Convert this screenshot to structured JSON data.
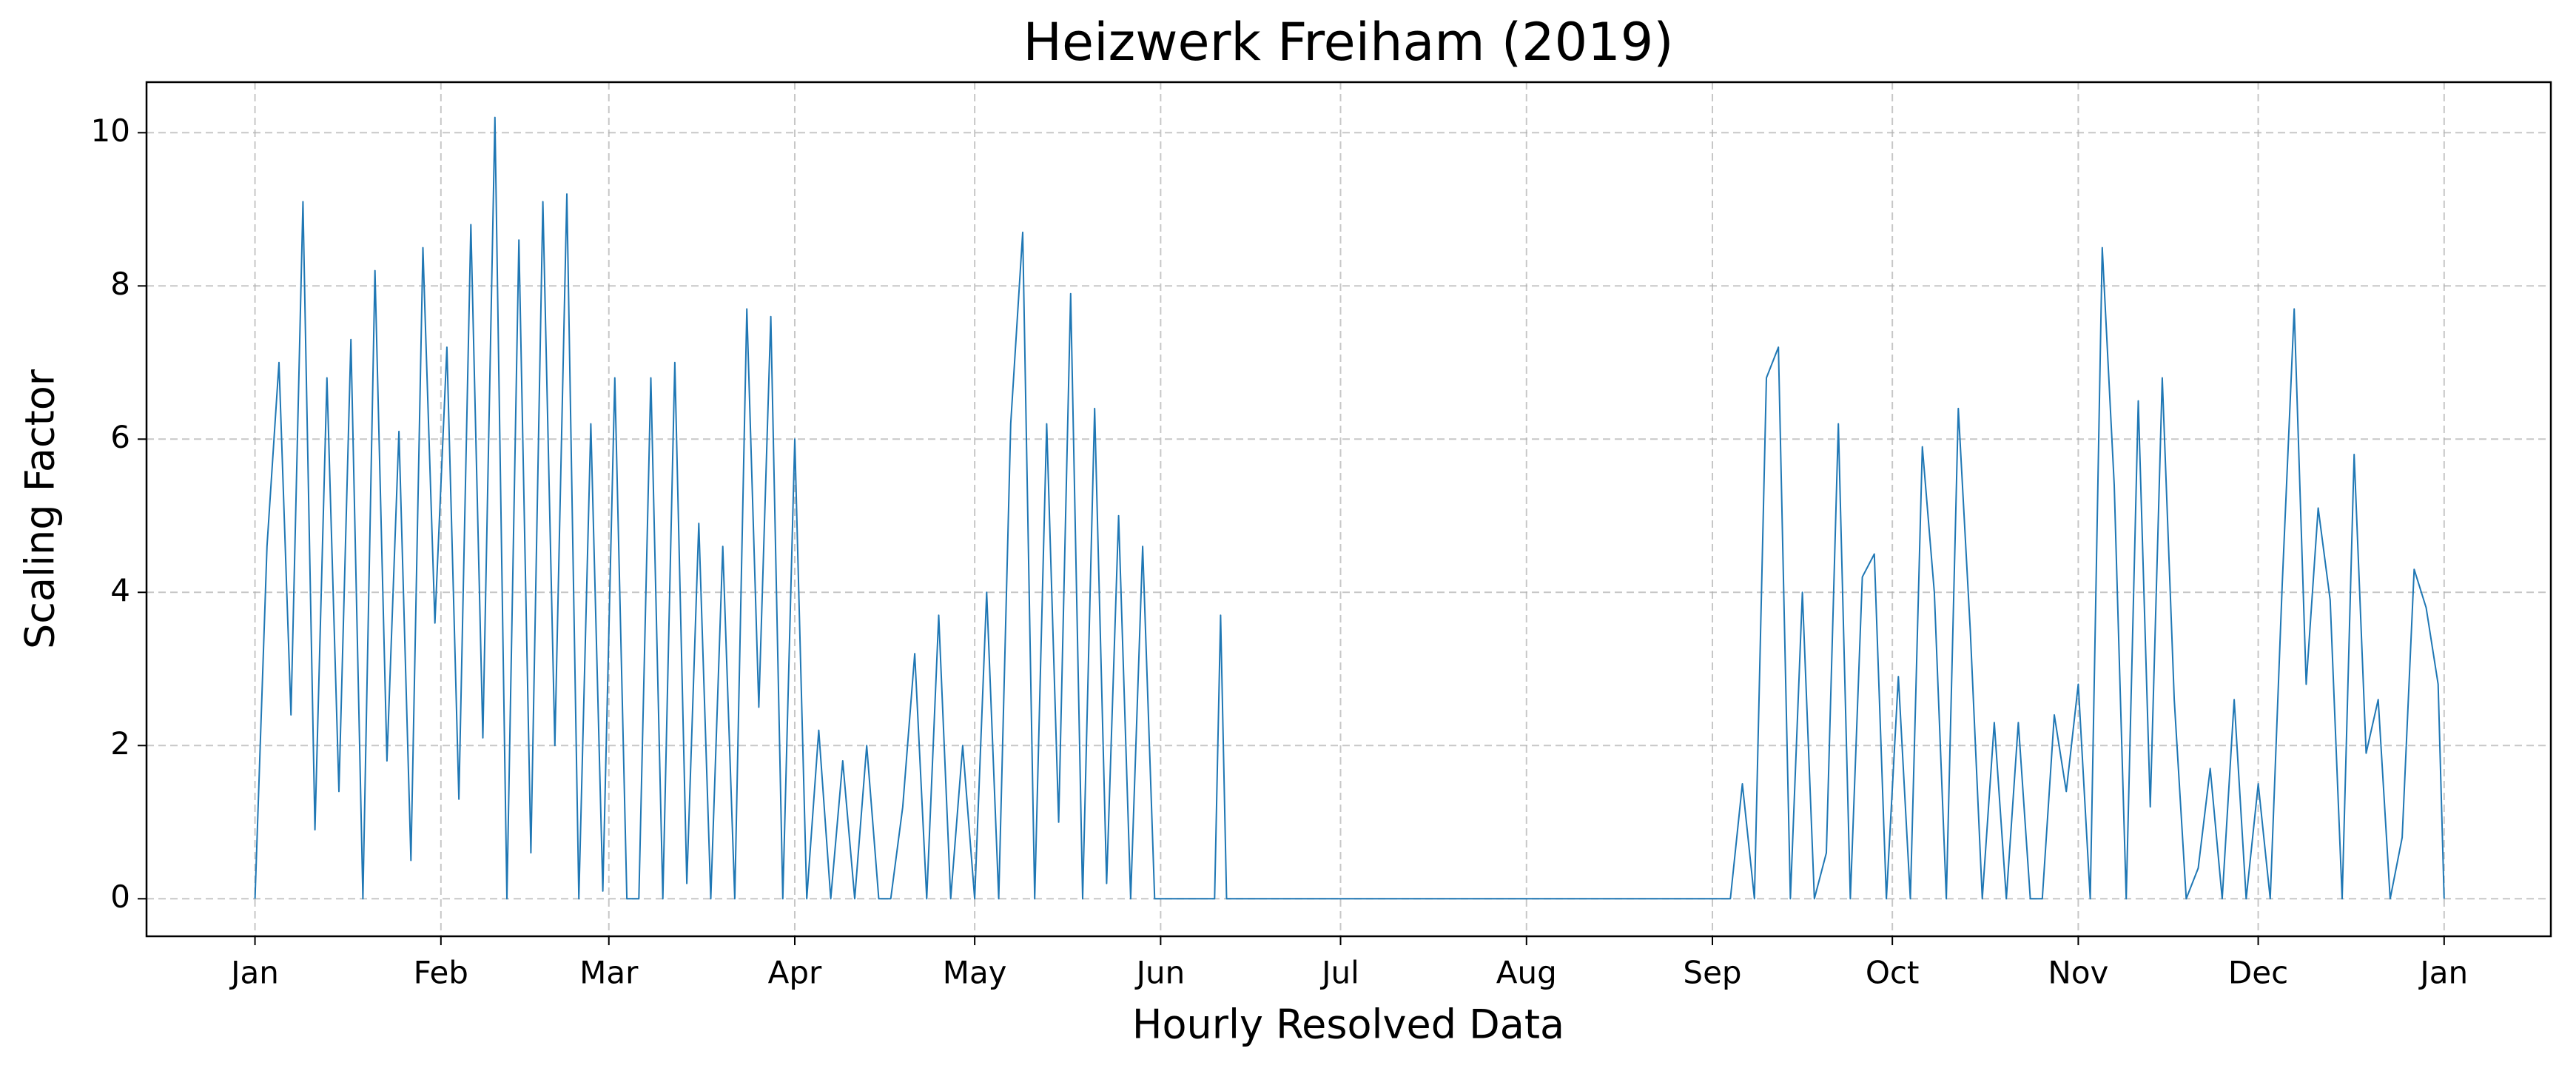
{
  "chart_data": {
    "type": "line",
    "title": "Heizwerk Freiham (2019)",
    "x_label": "Hourly Resolved Data",
    "y_label": "Scaling Factor",
    "grid": true,
    "xlim": [
      -434,
      9187
    ],
    "ylim": [
      -0.49,
      10.66
    ],
    "xticks": [
      {
        "value": 0,
        "label": "Jan"
      },
      {
        "value": 744,
        "label": "Feb"
      },
      {
        "value": 1416,
        "label": "Mar"
      },
      {
        "value": 2160,
        "label": "Apr"
      },
      {
        "value": 2880,
        "label": "May"
      },
      {
        "value": 3624,
        "label": "Jun"
      },
      {
        "value": 4344,
        "label": "Jul"
      },
      {
        "value": 5088,
        "label": "Aug"
      },
      {
        "value": 5832,
        "label": "Sep"
      },
      {
        "value": 6552,
        "label": "Oct"
      },
      {
        "value": 7296,
        "label": "Nov"
      },
      {
        "value": 8016,
        "label": "Dec"
      },
      {
        "value": 8760,
        "label": "Jan"
      }
    ],
    "yticks": [
      0,
      2,
      4,
      6,
      8,
      10
    ],
    "x": [
      0,
      48,
      96,
      144,
      192,
      240,
      288,
      336,
      384,
      432,
      480,
      528,
      576,
      624,
      672,
      720,
      768,
      816,
      864,
      912,
      960,
      1008,
      1056,
      1104,
      1152,
      1200,
      1248,
      1296,
      1344,
      1392,
      1440,
      1488,
      1536,
      1584,
      1632,
      1680,
      1728,
      1776,
      1824,
      1872,
      1920,
      1968,
      2016,
      2064,
      2112,
      2160,
      2208,
      2256,
      2304,
      2352,
      2400,
      2448,
      2496,
      2544,
      2592,
      2640,
      2688,
      2736,
      2784,
      2832,
      2880,
      2928,
      2976,
      3024,
      3072,
      3120,
      3168,
      3216,
      3264,
      3312,
      3360,
      3408,
      3456,
      3504,
      3552,
      3600,
      3840,
      3864,
      3888,
      4800,
      5904,
      5952,
      6000,
      6048,
      6096,
      6144,
      6192,
      6240,
      6288,
      6336,
      6384,
      6432,
      6480,
      6528,
      6576,
      6624,
      6672,
      6720,
      6768,
      6816,
      6864,
      6912,
      6960,
      7008,
      7056,
      7104,
      7152,
      7200,
      7248,
      7296,
      7344,
      7392,
      7440,
      7488,
      7536,
      7584,
      7632,
      7680,
      7728,
      7776,
      7824,
      7872,
      7920,
      7968,
      8016,
      8064,
      8112,
      8160,
      8208,
      8256,
      8304,
      8352,
      8400,
      8448,
      8496,
      8544,
      8592,
      8640,
      8688,
      8736,
      8760
    ],
    "series": [
      {
        "color": "#1f77b4",
        "values": [
          0,
          4.6,
          7.0,
          2.4,
          9.1,
          0.9,
          6.8,
          1.4,
          7.3,
          0,
          8.2,
          1.8,
          6.1,
          0.5,
          8.5,
          3.6,
          7.2,
          1.3,
          8.8,
          2.1,
          10.2,
          0,
          8.6,
          0.6,
          9.1,
          2.0,
          9.2,
          0,
          6.2,
          0.1,
          6.8,
          0,
          0,
          6.8,
          0,
          7.0,
          0.2,
          4.9,
          0,
          4.6,
          0,
          7.7,
          2.5,
          7.6,
          0,
          6.0,
          0,
          2.2,
          0,
          1.8,
          0,
          2.0,
          0,
          0,
          1.2,
          3.2,
          0,
          3.7,
          0,
          2.0,
          0,
          4.0,
          0,
          6.2,
          8.7,
          0,
          6.2,
          1.0,
          7.9,
          0,
          6.4,
          0.2,
          5.0,
          0,
          4.6,
          0,
          0,
          3.7,
          0,
          0,
          0,
          1.5,
          0,
          6.8,
          7.2,
          0,
          4.0,
          0,
          0.6,
          6.2,
          0,
          4.2,
          4.5,
          0,
          2.9,
          0,
          5.9,
          4.0,
          0,
          6.4,
          3.5,
          0,
          2.3,
          0,
          2.3,
          0,
          0,
          2.4,
          1.4,
          2.8,
          0,
          8.5,
          5.4,
          0,
          6.5,
          1.2,
          6.8,
          2.6,
          0,
          0.4,
          1.7,
          0,
          2.6,
          0,
          1.5,
          0,
          4.1,
          7.7,
          2.8,
          5.1,
          3.9,
          0,
          5.8,
          1.9,
          2.6,
          0,
          0.8,
          4.3,
          3.8,
          2.8,
          0
        ]
      }
    ]
  }
}
